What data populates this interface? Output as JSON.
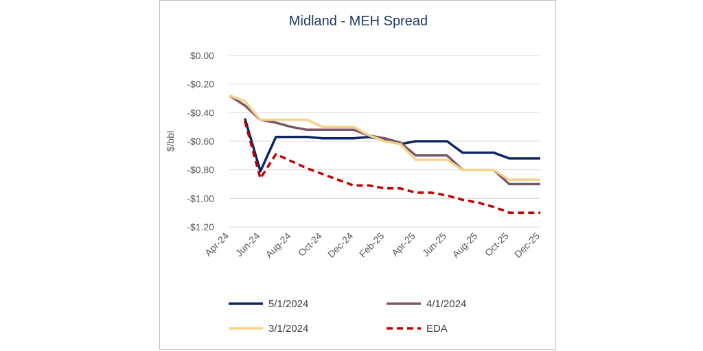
{
  "chart_data": {
    "type": "line",
    "title": "Midland - MEH Spread",
    "ylabel": "$/bbl",
    "xlabel": "",
    "ylim": [
      -1.2,
      0
    ],
    "yticks": [
      0,
      -0.2,
      -0.4,
      -0.6,
      -0.8,
      -1.0,
      -1.2
    ],
    "ytick_labels": [
      "$0.00",
      "-$0.20",
      "-$0.40",
      "-$0.60",
      "-$0.80",
      "-$1.00",
      "-$1.20"
    ],
    "grid": true,
    "legend_position": "bottom",
    "categories": [
      "Apr-24",
      "May-24",
      "Jun-24",
      "Jul-24",
      "Aug-24",
      "Sep-24",
      "Oct-24",
      "Nov-24",
      "Dec-24",
      "Jan-25",
      "Feb-25",
      "Mar-25",
      "Apr-25",
      "May-25",
      "Jun-25",
      "Jul-25",
      "Aug-25",
      "Sep-25",
      "Oct-25",
      "Nov-25",
      "Dec-25"
    ],
    "tick_labels": [
      "Apr-24",
      "Jun-24",
      "Aug-24",
      "Oct-24",
      "Dec-24",
      "Feb-25",
      "Apr-25",
      "Jun-25",
      "Aug-25",
      "Oct-25",
      "Dec-25"
    ],
    "series": [
      {
        "name": "5/1/2024",
        "color": "#0e2561",
        "dash": "solid",
        "values": [
          null,
          -0.44,
          -0.81,
          -0.57,
          -0.57,
          -0.57,
          -0.58,
          -0.58,
          -0.58,
          -0.57,
          -0.59,
          -0.62,
          -0.6,
          -0.6,
          -0.6,
          -0.68,
          -0.68,
          -0.68,
          -0.72,
          -0.72,
          -0.72
        ]
      },
      {
        "name": "4/1/2024",
        "color": "#7b5668",
        "dash": "solid",
        "values": [
          -0.28,
          -0.35,
          -0.45,
          -0.47,
          -0.5,
          -0.52,
          -0.52,
          -0.52,
          -0.52,
          -0.56,
          -0.58,
          -0.61,
          -0.7,
          -0.7,
          -0.7,
          -0.8,
          -0.8,
          -0.8,
          -0.9,
          -0.9,
          -0.9
        ]
      },
      {
        "name": "3/1/2024",
        "color": "#f5d28c",
        "dash": "solid",
        "values": [
          -0.28,
          -0.32,
          -0.45,
          -0.45,
          -0.45,
          -0.45,
          -0.5,
          -0.5,
          -0.5,
          -0.56,
          -0.6,
          -0.62,
          -0.73,
          -0.73,
          -0.73,
          -0.8,
          -0.8,
          -0.8,
          -0.87,
          -0.87,
          -0.87
        ]
      },
      {
        "name": "EDA",
        "color": "#c00000",
        "dash": "dashed",
        "values": [
          null,
          -0.46,
          -0.86,
          -0.69,
          -0.74,
          -0.79,
          -0.83,
          -0.87,
          -0.91,
          -0.91,
          -0.93,
          -0.93,
          -0.96,
          -0.96,
          -0.98,
          -1.01,
          -1.03,
          -1.06,
          -1.1,
          -1.1,
          -1.1
        ]
      }
    ]
  }
}
